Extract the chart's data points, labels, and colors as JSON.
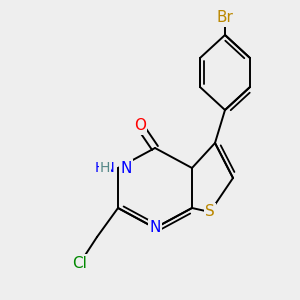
{
  "background_color": "#eeeeee",
  "atoms": {
    "S": {
      "label": "S",
      "color": "#bb8800",
      "fontsize": 10
    },
    "NH": {
      "label": "H",
      "color": "#558888",
      "fontsize": 10
    },
    "N3": {
      "label": "N",
      "color": "#0000ff",
      "fontsize": 10
    },
    "N1": {
      "label": "N",
      "color": "#0000ff",
      "fontsize": 10
    },
    "O": {
      "label": "O",
      "color": "#ff0000",
      "fontsize": 10
    },
    "Cl": {
      "label": "Cl",
      "color": "#008800",
      "fontsize": 10
    },
    "Br": {
      "label": "Br",
      "color": "#bb8800",
      "fontsize": 10
    }
  },
  "lw": 1.4,
  "lw2": 1.3
}
